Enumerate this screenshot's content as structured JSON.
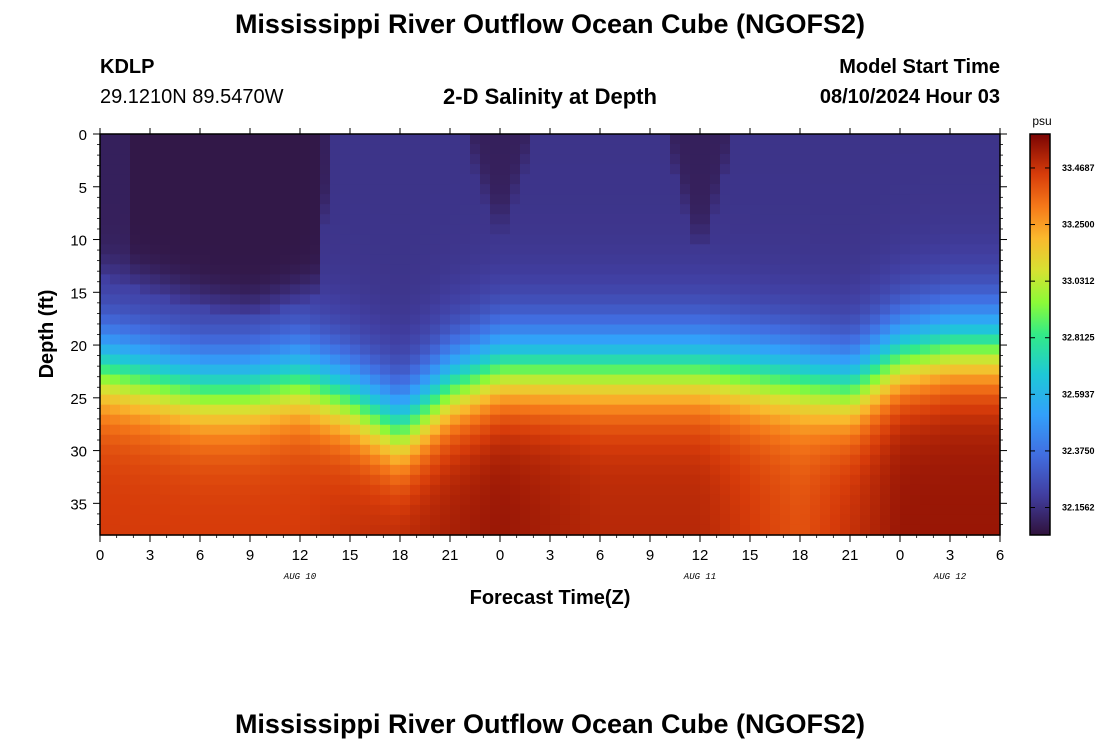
{
  "header": {
    "title": "Mississippi River Outflow Ocean Cube (NGOFS2)",
    "station_id": "KDLP",
    "location": "29.1210N  89.5470W",
    "subtitle": "2-D Salinity at Depth",
    "model_start_label": "Model Start Time",
    "model_start_value": "08/10/2024 Hour 03"
  },
  "footer": {
    "title": "Mississippi River Outflow Ocean Cube (NGOFS2)"
  },
  "chart_data": {
    "type": "heatmap",
    "title": "2-D Salinity at Depth",
    "xlabel": "Forecast Time(Z)",
    "ylabel": "Depth (ft)",
    "x_ticks": [
      "0",
      "3",
      "6",
      "9",
      "12",
      "15",
      "18",
      "21",
      "0",
      "3",
      "6",
      "9",
      "12",
      "15",
      "18",
      "21",
      "0",
      "3",
      "6"
    ],
    "x_range_hours": [
      0,
      54
    ],
    "date_labels": [
      {
        "hour": 12,
        "label": "AUG 10"
      },
      {
        "hour": 36,
        "label": "AUG 11"
      },
      {
        "hour": 51,
        "label": "AUG 12"
      }
    ],
    "y_ticks": [
      "0",
      "5",
      "10",
      "15",
      "20",
      "25",
      "30",
      "35"
    ],
    "y_range_ft": [
      0,
      38
    ],
    "colorbar": {
      "unit": "psu",
      "min": 32.05,
      "max": 33.6,
      "ticks": [
        "33.4687",
        "33.2500",
        "33.0312",
        "32.8125",
        "32.5937",
        "32.3750",
        "32.1562"
      ],
      "tick_values": [
        33.4687,
        33.25,
        33.0312,
        32.8125,
        32.5937,
        32.375,
        32.1562
      ]
    },
    "series": [
      {
        "name": "surface_fresh_core_depth_ft",
        "hours": [
          0,
          6,
          9,
          11,
          13,
          14,
          22,
          24,
          26,
          30,
          34,
          36,
          38,
          42,
          54
        ],
        "values": [
          12,
          15,
          16,
          15,
          14,
          0,
          0,
          9,
          0,
          0,
          0,
          11,
          0,
          0,
          0
        ]
      },
      {
        "name": "halocline_center_depth_ft",
        "hours": [
          0,
          3,
          6,
          9,
          12,
          15,
          18,
          21,
          24,
          30,
          36,
          42,
          45,
          48,
          51,
          54
        ],
        "values": [
          22,
          23,
          24,
          24,
          23,
          25,
          28,
          24,
          22,
          22,
          22,
          23,
          24,
          21,
          20,
          20
        ]
      },
      {
        "name": "bottom_salinity_psu",
        "hours": [
          0,
          12,
          24,
          30,
          36,
          42,
          48,
          54
        ],
        "values": [
          33.45,
          33.45,
          33.55,
          33.5,
          33.5,
          33.4,
          33.55,
          33.55
        ]
      }
    ]
  }
}
